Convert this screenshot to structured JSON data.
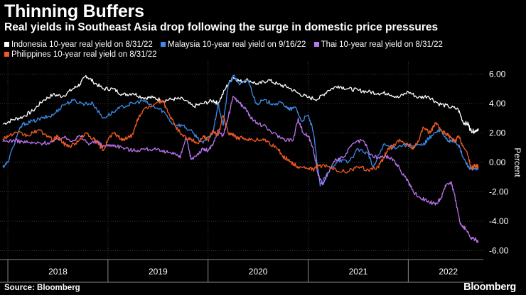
{
  "header": {
    "title": "Thinning Buffers",
    "subtitle": "Real yields in Southeast Asia drop following the surge in domestic price pressures"
  },
  "footer": {
    "source": "Source: Bloomberg",
    "brand": "Bloomberg"
  },
  "colors": {
    "background": "#000000",
    "grid": "#3a3a3a",
    "indonesia": "#ffffff",
    "malaysia": "#3d8ae8",
    "thai": "#bb73ee",
    "philippines": "#f15a22"
  },
  "chart_data": {
    "type": "line",
    "title": "Thinning Buffers",
    "subtitle": "Real yields in Southeast Asia drop following the surge in domestic price pressures",
    "xlabel": "",
    "ylabel": "Percent",
    "xlim": [
      2017.95,
      2022.75
    ],
    "ylim": [
      -6.6,
      6.6
    ],
    "yticks": [
      6,
      4,
      2,
      0,
      -2,
      -4,
      -6
    ],
    "ytick_labels": [
      "6.00",
      "4.00",
      "2.00",
      "0.00",
      "-2.00",
      "-4.00",
      "-6.00"
    ],
    "year_boundaries": [
      2018,
      2019,
      2020,
      2021,
      2022
    ],
    "xtick_labels": [
      {
        "label": "2018",
        "x": 2018.5
      },
      {
        "label": "2019",
        "x": 2019.5
      },
      {
        "label": "2020",
        "x": 2020.5
      },
      {
        "label": "2021",
        "x": 2021.5
      },
      {
        "label": "2022",
        "x": 2022.4
      }
    ],
    "grid": true,
    "legend_position": "top",
    "series": [
      {
        "key": "indonesia",
        "name": "Indonesia 10-year real yield on 8/31/22",
        "points": [
          [
            2017.95,
            2.6
          ],
          [
            2018.05,
            2.9
          ],
          [
            2018.15,
            3.1
          ],
          [
            2018.25,
            3.5
          ],
          [
            2018.35,
            4.2
          ],
          [
            2018.45,
            4.6
          ],
          [
            2018.55,
            4.5
          ],
          [
            2018.65,
            5.0
          ],
          [
            2018.72,
            5.3
          ],
          [
            2018.78,
            5.9
          ],
          [
            2018.85,
            5.5
          ],
          [
            2018.95,
            5.0
          ],
          [
            2019.05,
            5.0
          ],
          [
            2019.15,
            4.6
          ],
          [
            2019.25,
            4.7
          ],
          [
            2019.35,
            4.4
          ],
          [
            2019.45,
            4.4
          ],
          [
            2019.55,
            4.2
          ],
          [
            2019.65,
            4.3
          ],
          [
            2019.75,
            4.3
          ],
          [
            2019.85,
            3.8
          ],
          [
            2019.95,
            4.0
          ],
          [
            2020.05,
            4.2
          ],
          [
            2020.1,
            4.0
          ],
          [
            2020.18,
            5.1
          ],
          [
            2020.25,
            5.8
          ],
          [
            2020.32,
            5.5
          ],
          [
            2020.4,
            5.6
          ],
          [
            2020.5,
            5.3
          ],
          [
            2020.6,
            5.6
          ],
          [
            2020.7,
            5.3
          ],
          [
            2020.8,
            5.1
          ],
          [
            2020.9,
            4.7
          ],
          [
            2021.0,
            4.4
          ],
          [
            2021.1,
            4.3
          ],
          [
            2021.2,
            4.9
          ],
          [
            2021.3,
            5.2
          ],
          [
            2021.4,
            5.0
          ],
          [
            2021.5,
            4.9
          ],
          [
            2021.6,
            4.8
          ],
          [
            2021.7,
            4.7
          ],
          [
            2021.8,
            4.7
          ],
          [
            2021.9,
            4.4
          ],
          [
            2022.0,
            4.8
          ],
          [
            2022.1,
            4.4
          ],
          [
            2022.2,
            4.5
          ],
          [
            2022.3,
            4.0
          ],
          [
            2022.4,
            3.8
          ],
          [
            2022.5,
            3.6
          ],
          [
            2022.55,
            2.7
          ],
          [
            2022.6,
            2.6
          ],
          [
            2022.62,
            2.2
          ],
          [
            2022.66,
            2.1
          ],
          [
            2022.7,
            2.3
          ]
        ]
      },
      {
        "key": "malaysia",
        "name": "Malaysia 10-year real yield on 9/16/22",
        "points": [
          [
            2017.95,
            -0.3
          ],
          [
            2018.0,
            0.0
          ],
          [
            2018.1,
            2.0
          ],
          [
            2018.15,
            2.6
          ],
          [
            2018.25,
            2.8
          ],
          [
            2018.35,
            3.0
          ],
          [
            2018.45,
            3.2
          ],
          [
            2018.55,
            3.9
          ],
          [
            2018.65,
            4.2
          ],
          [
            2018.75,
            4.0
          ],
          [
            2018.85,
            4.0
          ],
          [
            2018.95,
            3.0
          ],
          [
            2019.05,
            3.4
          ],
          [
            2019.15,
            3.8
          ],
          [
            2019.25,
            4.0
          ],
          [
            2019.35,
            4.2
          ],
          [
            2019.45,
            3.8
          ],
          [
            2019.55,
            3.5
          ],
          [
            2019.65,
            2.6
          ],
          [
            2019.75,
            2.5
          ],
          [
            2019.85,
            2.0
          ],
          [
            2019.95,
            1.3
          ],
          [
            2020.05,
            2.0
          ],
          [
            2020.1,
            4.0
          ],
          [
            2020.15,
            2.5
          ],
          [
            2020.2,
            5.2
          ],
          [
            2020.25,
            5.9
          ],
          [
            2020.32,
            5.3
          ],
          [
            2020.4,
            5.6
          ],
          [
            2020.48,
            4.0
          ],
          [
            2020.55,
            4.2
          ],
          [
            2020.65,
            4.0
          ],
          [
            2020.75,
            4.0
          ],
          [
            2020.8,
            3.6
          ],
          [
            2020.88,
            3.7
          ],
          [
            2020.93,
            2.8
          ],
          [
            2021.0,
            3.2
          ],
          [
            2021.05,
            2.1
          ],
          [
            2021.12,
            -1.6
          ],
          [
            2021.2,
            -0.7
          ],
          [
            2021.3,
            0.2
          ],
          [
            2021.4,
            0.0
          ],
          [
            2021.5,
            0.9
          ],
          [
            2021.6,
            0.6
          ],
          [
            2021.65,
            -0.4
          ],
          [
            2021.75,
            1.2
          ],
          [
            2021.85,
            1.0
          ],
          [
            2021.95,
            1.2
          ],
          [
            2022.05,
            1.1
          ],
          [
            2022.15,
            1.2
          ],
          [
            2022.2,
            1.6
          ],
          [
            2022.25,
            1.9
          ],
          [
            2022.32,
            2.2
          ],
          [
            2022.4,
            1.4
          ],
          [
            2022.45,
            1.5
          ],
          [
            2022.5,
            1.2
          ],
          [
            2022.55,
            0.3
          ],
          [
            2022.6,
            -0.3
          ],
          [
            2022.65,
            -0.5
          ],
          [
            2022.7,
            -0.5
          ]
        ]
      },
      {
        "key": "thai",
        "name": "Thai 10-year real yield on 8/31/22",
        "points": [
          [
            2017.95,
            1.4
          ],
          [
            2018.05,
            1.5
          ],
          [
            2018.15,
            1.4
          ],
          [
            2018.25,
            1.3
          ],
          [
            2018.35,
            1.3
          ],
          [
            2018.45,
            1.4
          ],
          [
            2018.55,
            1.7
          ],
          [
            2018.65,
            1.5
          ],
          [
            2018.72,
            1.8
          ],
          [
            2018.8,
            1.3
          ],
          [
            2018.9,
            1.4
          ],
          [
            2018.95,
            1.1
          ],
          [
            2019.05,
            1.2
          ],
          [
            2019.15,
            1.0
          ],
          [
            2019.25,
            0.8
          ],
          [
            2019.35,
            0.9
          ],
          [
            2019.45,
            0.9
          ],
          [
            2019.55,
            0.7
          ],
          [
            2019.65,
            0.7
          ],
          [
            2019.72,
            0.3
          ],
          [
            2019.78,
            1.7
          ],
          [
            2019.83,
            0.2
          ],
          [
            2019.9,
            0.6
          ],
          [
            2019.95,
            0.9
          ],
          [
            2020.0,
            0.8
          ],
          [
            2020.05,
            1.2
          ],
          [
            2020.1,
            2.2
          ],
          [
            2020.15,
            1.8
          ],
          [
            2020.2,
            3.0
          ],
          [
            2020.25,
            4.5
          ],
          [
            2020.32,
            4.0
          ],
          [
            2020.38,
            3.6
          ],
          [
            2020.45,
            2.8
          ],
          [
            2020.55,
            2.5
          ],
          [
            2020.65,
            2.0
          ],
          [
            2020.75,
            1.6
          ],
          [
            2020.85,
            1.5
          ],
          [
            2020.9,
            3.0
          ],
          [
            2020.95,
            2.0
          ],
          [
            2021.0,
            1.8
          ],
          [
            2021.05,
            1.0
          ],
          [
            2021.1,
            -0.9
          ],
          [
            2021.15,
            -1.5
          ],
          [
            2021.2,
            -0.7
          ],
          [
            2021.28,
            0.2
          ],
          [
            2021.35,
            0.3
          ],
          [
            2021.45,
            1.3
          ],
          [
            2021.55,
            1.5
          ],
          [
            2021.62,
            0.5
          ],
          [
            2021.7,
            0.3
          ],
          [
            2021.78,
            0.4
          ],
          [
            2021.85,
            0.2
          ],
          [
            2021.92,
            -0.5
          ],
          [
            2022.0,
            -1.3
          ],
          [
            2022.05,
            -2.0
          ],
          [
            2022.12,
            -2.4
          ],
          [
            2022.2,
            -2.6
          ],
          [
            2022.27,
            -2.9
          ],
          [
            2022.33,
            -2.4
          ],
          [
            2022.38,
            -1.5
          ],
          [
            2022.43,
            -1.3
          ],
          [
            2022.48,
            -2.8
          ],
          [
            2022.52,
            -4.2
          ],
          [
            2022.57,
            -4.5
          ],
          [
            2022.62,
            -5.1
          ],
          [
            2022.67,
            -5.2
          ],
          [
            2022.7,
            -5.4
          ]
        ]
      },
      {
        "key": "philippines",
        "name": "Philippines 10-year real yield on 8/31/22",
        "points": [
          [
            2017.95,
            1.6
          ],
          [
            2018.0,
            1.8
          ],
          [
            2018.1,
            2.0
          ],
          [
            2018.2,
            1.8
          ],
          [
            2018.3,
            2.2
          ],
          [
            2018.4,
            1.8
          ],
          [
            2018.45,
            1.5
          ],
          [
            2018.5,
            1.8
          ],
          [
            2018.55,
            1.3
          ],
          [
            2018.62,
            1.1
          ],
          [
            2018.7,
            1.4
          ],
          [
            2018.78,
            2.0
          ],
          [
            2018.85,
            1.6
          ],
          [
            2018.9,
            1.3
          ],
          [
            2018.95,
            0.8
          ],
          [
            2019.0,
            1.5
          ],
          [
            2019.05,
            2.0
          ],
          [
            2019.1,
            1.8
          ],
          [
            2019.15,
            1.5
          ],
          [
            2019.2,
            1.7
          ],
          [
            2019.25,
            1.9
          ],
          [
            2019.3,
            3.0
          ],
          [
            2019.35,
            3.5
          ],
          [
            2019.42,
            3.8
          ],
          [
            2019.5,
            4.1
          ],
          [
            2019.55,
            4.2
          ],
          [
            2019.6,
            3.4
          ],
          [
            2019.67,
            2.5
          ],
          [
            2019.72,
            2.0
          ],
          [
            2019.8,
            1.6
          ],
          [
            2019.85,
            1.5
          ],
          [
            2019.9,
            1.3
          ],
          [
            2019.95,
            1.8
          ],
          [
            2020.0,
            1.5
          ],
          [
            2020.05,
            2.2
          ],
          [
            2020.1,
            1.8
          ],
          [
            2020.15,
            3.2
          ],
          [
            2020.2,
            2.0
          ],
          [
            2020.25,
            1.9
          ],
          [
            2020.3,
            1.6
          ],
          [
            2020.35,
            1.7
          ],
          [
            2020.45,
            1.5
          ],
          [
            2020.55,
            1.6
          ],
          [
            2020.6,
            1.4
          ],
          [
            2020.7,
            0.9
          ],
          [
            2020.75,
            0.4
          ],
          [
            2020.8,
            0.2
          ],
          [
            2020.85,
            -0.1
          ],
          [
            2020.9,
            -0.3
          ],
          [
            2021.0,
            -0.4
          ],
          [
            2021.05,
            -0.5
          ],
          [
            2021.1,
            -0.2
          ],
          [
            2021.2,
            -0.3
          ],
          [
            2021.3,
            -0.6
          ],
          [
            2021.4,
            -0.6
          ],
          [
            2021.5,
            -0.3
          ],
          [
            2021.6,
            -0.5
          ],
          [
            2021.7,
            -0.3
          ],
          [
            2021.75,
            0.3
          ],
          [
            2021.8,
            0.9
          ],
          [
            2021.85,
            1.1
          ],
          [
            2021.92,
            1.5
          ],
          [
            2022.0,
            1.2
          ],
          [
            2022.05,
            0.9
          ],
          [
            2022.1,
            1.4
          ],
          [
            2022.15,
            2.4
          ],
          [
            2022.22,
            2.0
          ],
          [
            2022.27,
            2.7
          ],
          [
            2022.32,
            2.2
          ],
          [
            2022.37,
            2.0
          ],
          [
            2022.42,
            1.7
          ],
          [
            2022.47,
            1.4
          ],
          [
            2022.5,
            1.8
          ],
          [
            2022.55,
            1.1
          ],
          [
            2022.6,
            0.4
          ],
          [
            2022.63,
            -0.4
          ],
          [
            2022.67,
            -0.2
          ],
          [
            2022.7,
            -0.3
          ]
        ]
      }
    ]
  }
}
